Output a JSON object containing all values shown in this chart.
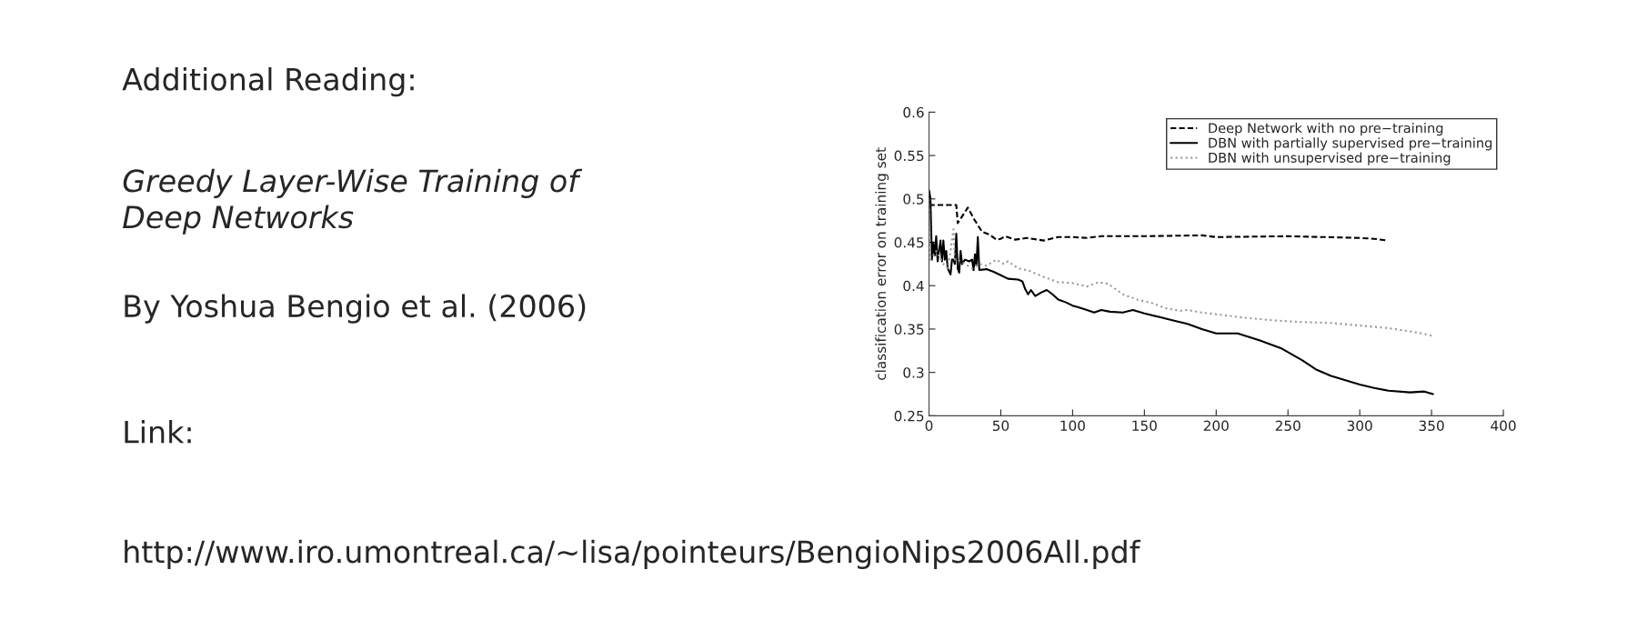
{
  "chart_data": {
    "type": "line",
    "title": "Additional Reading:",
    "annotations": [
      "Greedy Layer-Wise Training of\nDeep Networks",
      "By Yoshua Bengio et al. (2006)",
      "Link:",
      "http://www.iro.umontreal.ca/~lisa/pointeurs/BengioNips2006All.pdf"
    ],
    "ylabel": "classification error on training set",
    "xlim": [
      0,
      400
    ],
    "xticks": [
      0,
      50,
      100,
      150,
      200,
      250,
      300,
      350,
      400
    ],
    "ylim": [
      0.25,
      0.6
    ],
    "yticks": [
      0.25,
      0.3,
      0.35,
      0.4,
      0.45,
      0.5,
      0.55,
      0.6
    ],
    "grid": false,
    "legend": "top right",
    "series": [
      {
        "name": "Deep Network with no pre−training",
        "color": "#000000",
        "line_style": "dashed",
        "x": [
          0,
          19,
          20,
          27,
          32,
          37,
          42,
          47,
          50,
          53,
          60,
          68,
          80,
          90,
          100,
          110,
          120,
          150,
          190,
          200,
          250,
          300,
          310,
          319
        ],
        "values": [
          0.493,
          0.493,
          0.472,
          0.49,
          0.475,
          0.462,
          0.459,
          0.453,
          0.454,
          0.457,
          0.453,
          0.455,
          0.452,
          0.456,
          0.456,
          0.455,
          0.457,
          0.457,
          0.458,
          0.456,
          0.457,
          0.455,
          0.454,
          0.452
        ]
      },
      {
        "name": "DBN with partially supervised pre−training",
        "color": "#000000",
        "line_style": "solid",
        "x": [
          0,
          1,
          2,
          3,
          4,
          5,
          6,
          8,
          9,
          10,
          11,
          12,
          13,
          15,
          16,
          17,
          18,
          19,
          20,
          21,
          22,
          23,
          25,
          28,
          30,
          31,
          32,
          33,
          34,
          35,
          40,
          45,
          50,
          55,
          62,
          65,
          67,
          69,
          71,
          74,
          78,
          82,
          86,
          90,
          95,
          100,
          104,
          110,
          115,
          120,
          126,
          135,
          142,
          150,
          160,
          170,
          180,
          190,
          200,
          215,
          230,
          245,
          260,
          270,
          280,
          290,
          300,
          310,
          320,
          335,
          345,
          351
        ],
        "values": [
          0.51,
          0.5,
          0.43,
          0.45,
          0.435,
          0.457,
          0.428,
          0.452,
          0.428,
          0.452,
          0.43,
          0.44,
          0.42,
          0.413,
          0.43,
          0.43,
          0.425,
          0.46,
          0.42,
          0.415,
          0.44,
          0.425,
          0.43,
          0.428,
          0.43,
          0.418,
          0.436,
          0.423,
          0.456,
          0.418,
          0.419,
          0.416,
          0.412,
          0.408,
          0.407,
          0.405,
          0.396,
          0.39,
          0.395,
          0.388,
          0.392,
          0.395,
          0.39,
          0.384,
          0.381,
          0.377,
          0.375,
          0.372,
          0.369,
          0.372,
          0.37,
          0.369,
          0.372,
          0.368,
          0.364,
          0.36,
          0.356,
          0.35,
          0.345,
          0.345,
          0.337,
          0.328,
          0.314,
          0.303,
          0.296,
          0.291,
          0.286,
          0.282,
          0.279,
          0.277,
          0.278,
          0.275
        ]
      },
      {
        "name": "DBN with unsupervised pre−training",
        "color": "#999999",
        "line_style": "dotted",
        "x": [
          0,
          1,
          5,
          10,
          13,
          15,
          17,
          18,
          20,
          25,
          30,
          35,
          40,
          47,
          52,
          55,
          62,
          70,
          80,
          90,
          100,
          110,
          118,
          125,
          135,
          145,
          155,
          165,
          175,
          180,
          190,
          200,
          220,
          240,
          260,
          280,
          300,
          320,
          340,
          351
        ],
        "values": [
          0.5,
          0.43,
          0.44,
          0.425,
          0.42,
          0.44,
          0.465,
          0.43,
          0.43,
          0.425,
          0.42,
          0.425,
          0.423,
          0.43,
          0.425,
          0.428,
          0.42,
          0.417,
          0.41,
          0.404,
          0.403,
          0.399,
          0.404,
          0.402,
          0.39,
          0.384,
          0.38,
          0.374,
          0.371,
          0.372,
          0.369,
          0.367,
          0.363,
          0.36,
          0.358,
          0.357,
          0.354,
          0.351,
          0.346,
          0.342
        ]
      }
    ]
  }
}
